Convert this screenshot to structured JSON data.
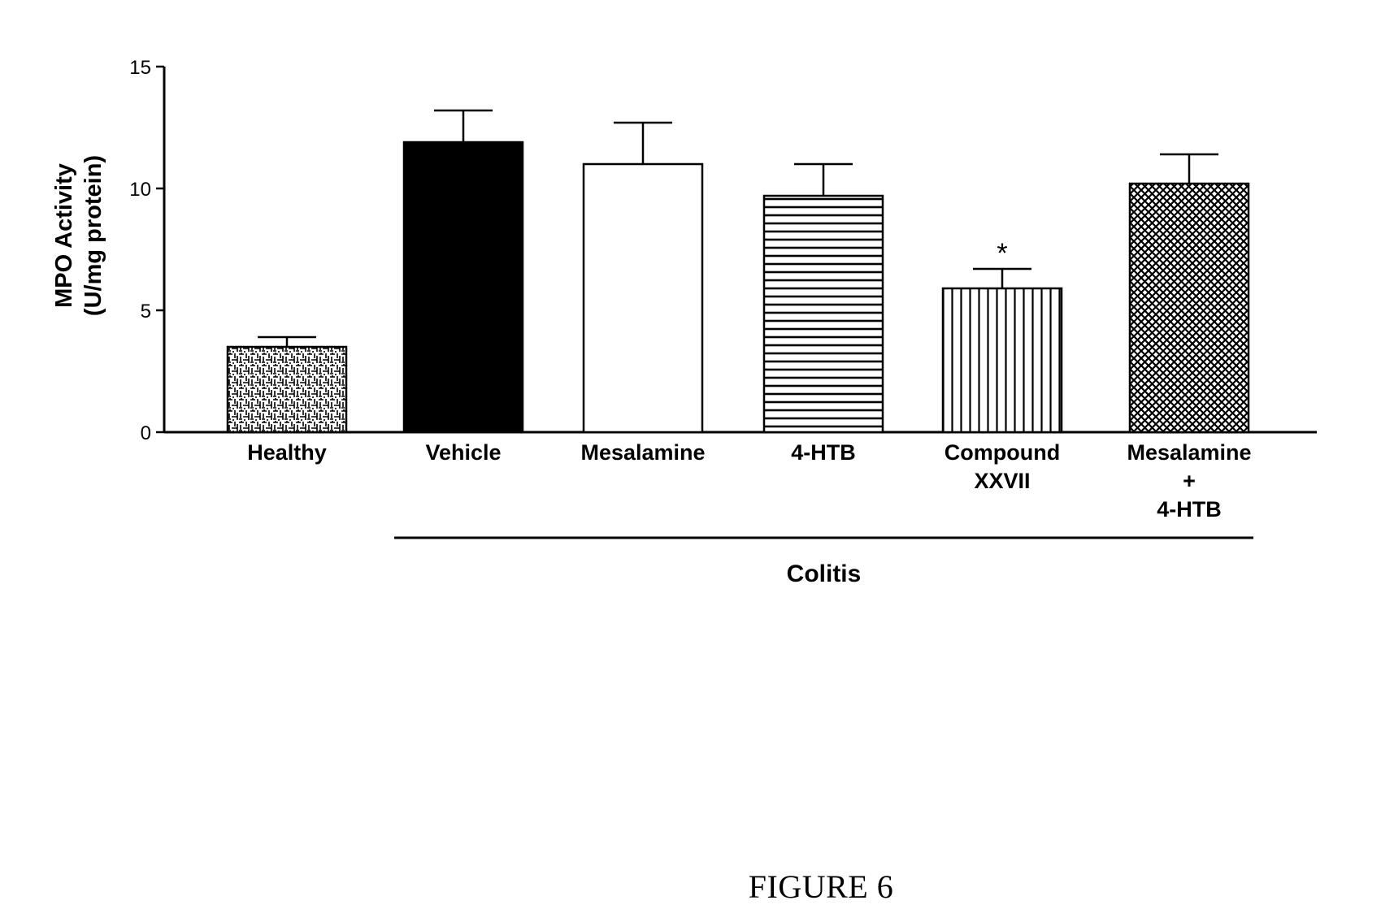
{
  "caption": "FIGURE 6",
  "chart_data": {
    "type": "bar",
    "title": "",
    "ylabel_lines": [
      "MPO Activity",
      "(U/mg protein)"
    ],
    "xlabel": "",
    "ylim": [
      0,
      15
    ],
    "yticks": [
      0,
      5,
      10,
      15
    ],
    "categories": [
      {
        "lines": [
          "Healthy"
        ]
      },
      {
        "lines": [
          "Vehicle"
        ]
      },
      {
        "lines": [
          "Mesalamine"
        ]
      },
      {
        "lines": [
          "4-HTB"
        ]
      },
      {
        "lines": [
          "Compound",
          "XXVII"
        ]
      },
      {
        "lines": [
          "Mesalamine",
          "+",
          "4-HTB"
        ]
      }
    ],
    "values": [
      3.5,
      11.9,
      11.0,
      9.7,
      5.9,
      10.2
    ],
    "errors": [
      0.4,
      1.3,
      1.7,
      1.3,
      0.8,
      1.2
    ],
    "fills": [
      "speckle",
      "solid-black",
      "white",
      "horizontal-stripes",
      "vertical-stripes",
      "crosshatch"
    ],
    "significance": [
      {
        "category_index": 4,
        "marker": "*"
      }
    ],
    "group_brackets": [
      {
        "label": "Colitis",
        "from_category": 1,
        "to_category": 5
      }
    ],
    "grid": false,
    "legend": "none"
  }
}
